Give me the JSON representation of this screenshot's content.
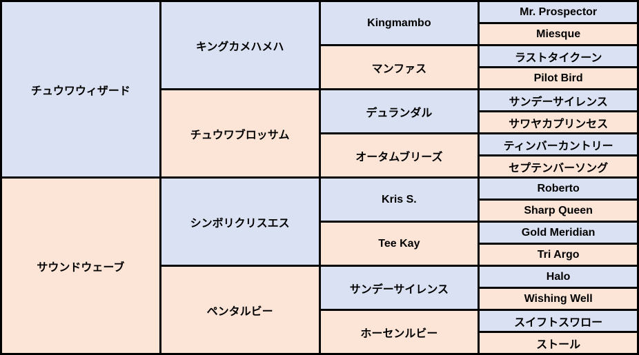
{
  "pedigree": {
    "colors": {
      "sire_bg": "#d9e1f2",
      "dam_bg": "#fce4d6",
      "border": "#000000",
      "text": "#000000"
    },
    "gen1": [
      {
        "name": "チュウワウィザード",
        "type": "sire"
      },
      {
        "name": "サウンドウェーブ",
        "type": "dam"
      }
    ],
    "gen2": [
      {
        "name": "キングカメハメハ",
        "type": "sire"
      },
      {
        "name": "チュウワブロッサム",
        "type": "dam"
      },
      {
        "name": "シンボリクリスエス",
        "type": "sire"
      },
      {
        "name": "ペンタルビー",
        "type": "dam"
      }
    ],
    "gen3": [
      {
        "name": "Kingmambo",
        "type": "sire"
      },
      {
        "name": "マンファス",
        "type": "dam"
      },
      {
        "name": "デュランダル",
        "type": "sire"
      },
      {
        "name": "オータムブリーズ",
        "type": "dam"
      },
      {
        "name": "Kris S.",
        "type": "sire"
      },
      {
        "name": "Tee Kay",
        "type": "dam"
      },
      {
        "name": "サンデーサイレンス",
        "type": "sire"
      },
      {
        "name": "ホーセンルビー",
        "type": "dam"
      }
    ],
    "gen4": [
      {
        "name": "Mr. Prospector",
        "type": "sire"
      },
      {
        "name": "Miesque",
        "type": "dam"
      },
      {
        "name": "ラストタイクーン",
        "type": "sire"
      },
      {
        "name": "Pilot Bird",
        "type": "dam"
      },
      {
        "name": "サンデーサイレンス",
        "type": "sire"
      },
      {
        "name": "サワヤカプリンセス",
        "type": "dam"
      },
      {
        "name": "ティンバーカントリー",
        "type": "sire"
      },
      {
        "name": "セプテンバーソング",
        "type": "dam"
      },
      {
        "name": "Roberto",
        "type": "sire"
      },
      {
        "name": "Sharp Queen",
        "type": "dam"
      },
      {
        "name": "Gold Meridian",
        "type": "sire"
      },
      {
        "name": "Tri Argo",
        "type": "dam"
      },
      {
        "name": "Halo",
        "type": "sire"
      },
      {
        "name": "Wishing Well",
        "type": "dam"
      },
      {
        "name": "スイフトスワロー",
        "type": "sire"
      },
      {
        "name": "ストール",
        "type": "dam"
      }
    ]
  }
}
